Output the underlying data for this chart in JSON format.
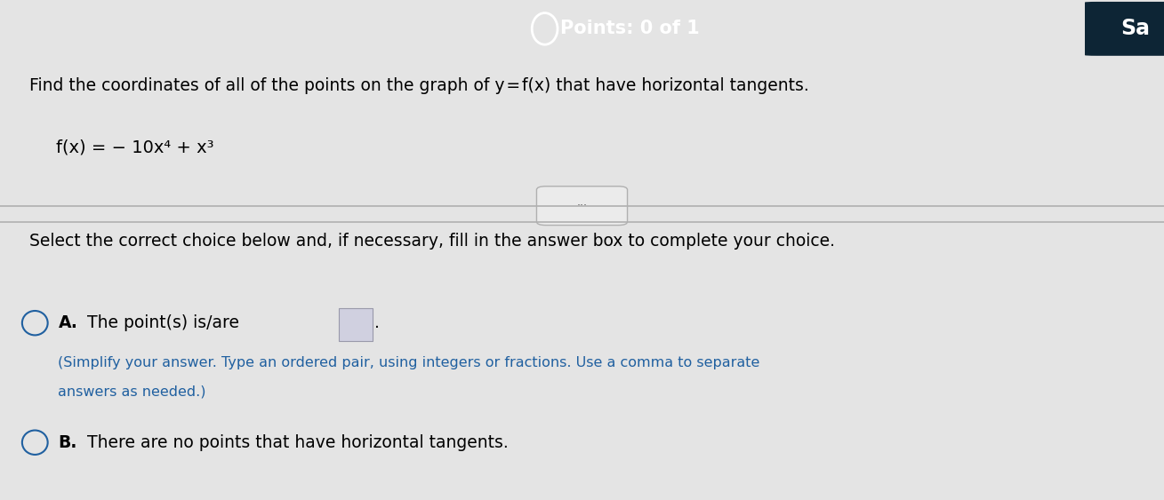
{
  "bg_color": "#e8e8e8",
  "header_color": "#1e6e8c",
  "header_text": "Points: 0 of 1",
  "header_text_color": "white",
  "save_button_color": "#1a3a4a",
  "save_button_text": "Sa",
  "main_bg": "#e4e4e4",
  "question_text": "Find the coordinates of all of the points on the graph of y = f(x) that have horizontal tangents.",
  "function_text": "f(x) = − 10x⁴ + x³",
  "divider_ellipsis": "···",
  "select_text": "Select the correct choice below and, if necessary, fill in the answer box to complete your choice.",
  "choice_a_label": "A.",
  "choice_a_main": "The point(s) is/are",
  "choice_a_sub1": "(Simplify your answer. Type an ordered pair, using integers or fractions. Use a comma to separate",
  "choice_a_sub2": "answers as needed.)",
  "choice_b_label": "B.",
  "choice_b_text": "There are no points that have horizontal tangents.",
  "title_fontsize": 13.5,
  "body_fontsize": 13.5,
  "small_fontsize": 11.5,
  "circle_color": "#2060a0",
  "answer_box_color": "#d0d0e0",
  "header_fontsize": 15,
  "header_bold": true
}
